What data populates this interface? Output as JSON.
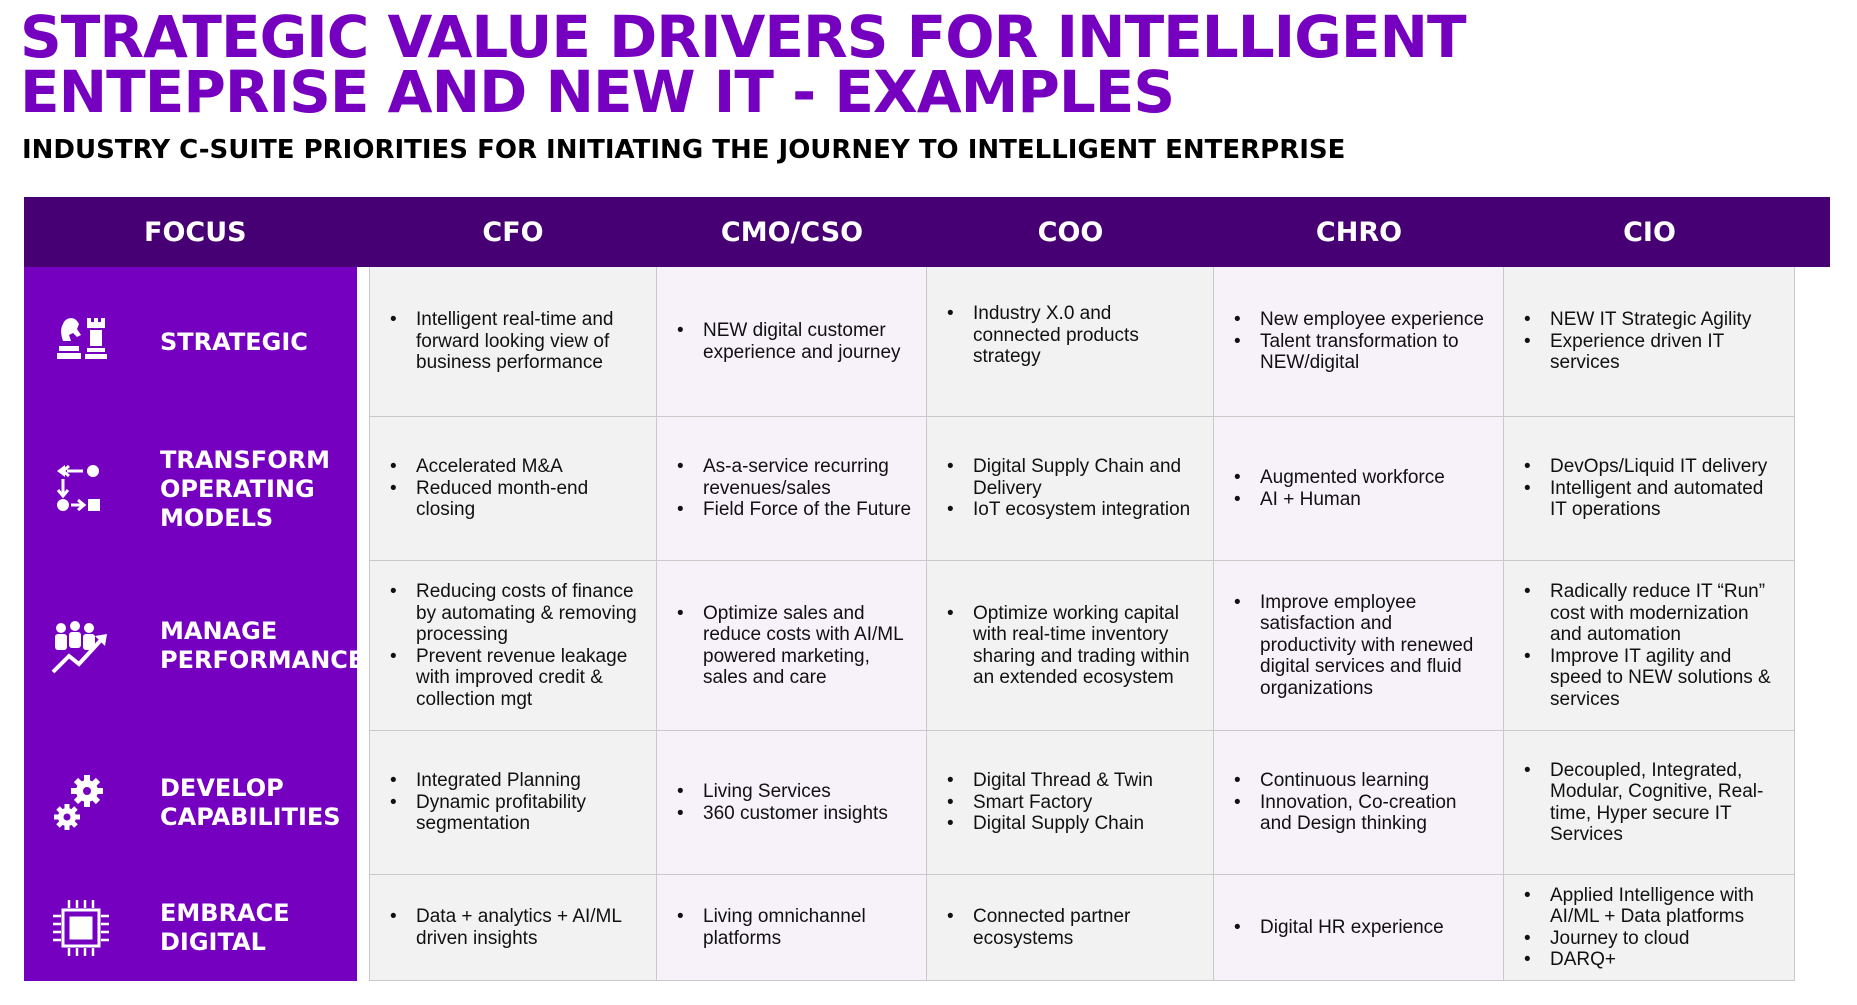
{
  "title": "STRATEGIC VALUE DRIVERS FOR INTELLIGENT ENTEPRISE AND NEW IT - EXAMPLES",
  "subtitle": "INDUSTRY C-SUITE PRIORITIES  FOR INITIATING THE JOURNEY TO INTELLIGENT ENTERPRISE",
  "headers": [
    "FOCUS",
    "CFO",
    "CMO/CSO",
    "COO",
    "CHRO",
    "CIO"
  ],
  "rows": [
    {
      "focus": "STRATEGIC",
      "icon": "chess-pieces-icon",
      "cells": [
        [
          "Intelligent real-time and forward looking view of business performance"
        ],
        [
          "NEW digital customer experience and journey"
        ],
        [
          "Industry X.0 and connected products strategy"
        ],
        [
          "New employee experience",
          "Talent transformation to NEW/digital"
        ],
        [
          "NEW IT Strategic Agility",
          "Experience driven IT services"
        ]
      ]
    },
    {
      "focus": "TRANSFORM\nOPERATING\nMODELS",
      "icon": "process-flow-icon",
      "cells": [
        [
          "Accelerated M&A",
          "Reduced month-end closing"
        ],
        [
          "As-a-service recurring revenues/sales",
          "Field Force of the Future"
        ],
        [
          "Digital Supply Chain and Delivery",
          "IoT ecosystem integration"
        ],
        [
          "Augmented workforce",
          "AI + Human"
        ],
        [
          "DevOps/Liquid IT delivery",
          "Intelligent and automated IT operations"
        ]
      ]
    },
    {
      "focus": "MANAGE\nPERFORMANCE",
      "icon": "people-growth-icon",
      "cells": [
        [
          "Reducing costs of finance by automating & removing processing",
          "Prevent revenue leakage with improved credit & collection mgt"
        ],
        [
          "Optimize sales and reduce costs with AI/ML powered marketing, sales and care"
        ],
        [
          "Optimize working capital with real-time inventory sharing and trading within an extended ecosystem"
        ],
        [
          "Improve employee satisfaction and productivity with renewed digital services and fluid organizations"
        ],
        [
          "Radically reduce IT “Run” cost with modernization and automation",
          "Improve IT agility and speed to NEW solutions & services"
        ]
      ]
    },
    {
      "focus": "DEVELOP\nCAPABILITIES",
      "icon": "gears-icon",
      "cells": [
        [
          "Integrated Planning",
          "Dynamic profitability segmentation"
        ],
        [
          "Living Services",
          "360 customer insights"
        ],
        [
          "Digital Thread & Twin",
          "Smart Factory",
          "Digital Supply Chain"
        ],
        [
          "Continuous learning",
          "Innovation, Co-creation and Design thinking"
        ],
        [
          "Decoupled, Integrated, Modular, Cognitive, Real-time, Hyper secure IT Services"
        ]
      ]
    },
    {
      "focus": "EMBRACE\nDIGITAL",
      "icon": "chip-icon",
      "cells": [
        [
          "Data + analytics + AI/ML driven insights"
        ],
        [
          "Living omnichannel platforms"
        ],
        [
          "Connected partner ecosystems"
        ],
        [
          "Digital HR experience"
        ],
        [
          "Applied Intelligence with AI/ML + Data platforms",
          "Journey to cloud",
          "DARQ+"
        ]
      ]
    }
  ],
  "colors": {
    "header": "#460073",
    "focus": "#7500c0",
    "title": "#7500c0",
    "cell": "#f2f2f2",
    "cell_alt": "#f7f1fa"
  }
}
